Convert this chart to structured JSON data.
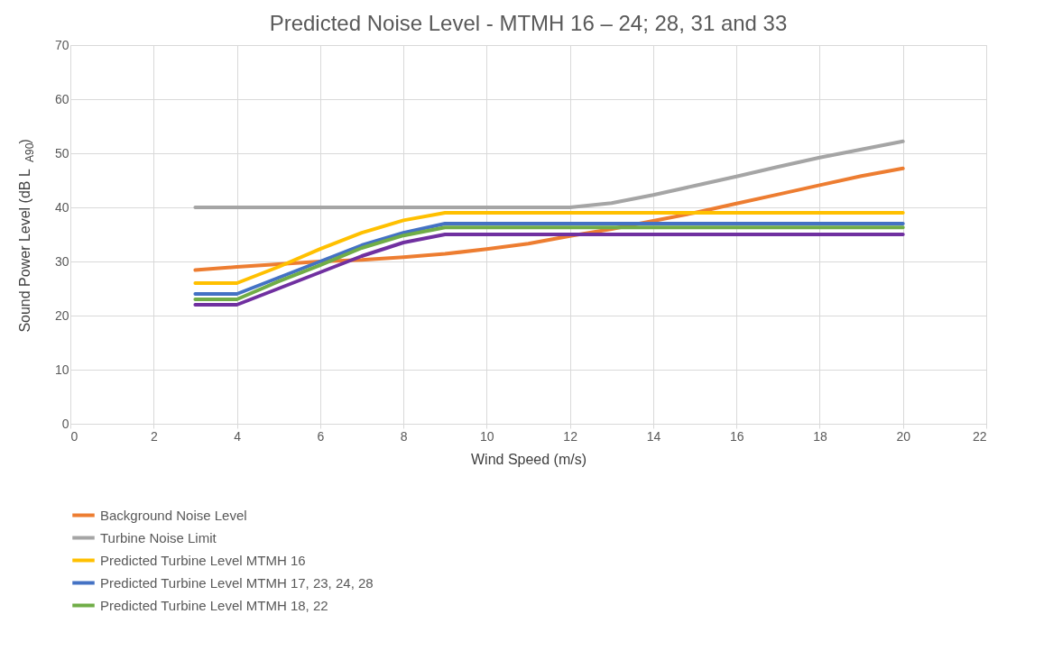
{
  "chart_data": {
    "type": "line",
    "title": "Predicted Noise Level - MTMH 16 – 24; 28, 31 and 33",
    "xlabel": "Wind Speed (m/s)",
    "ylabel": "Sound Power Level (dB L$_{A90}$)",
    "x": [
      3,
      4,
      5,
      6,
      7,
      8,
      9,
      10,
      11,
      12,
      13,
      14,
      15,
      16,
      17,
      18,
      19,
      20
    ],
    "series": [
      {
        "name": "Background Noise Level",
        "color": "#ed7d31",
        "values": [
          28.4,
          29,
          29.5,
          30,
          30.3,
          30.8,
          31.4,
          32.3,
          33.3,
          34.7,
          36,
          37.5,
          39,
          40.7,
          42.4,
          44.1,
          45.8,
          47.2
        ]
      },
      {
        "name": "Turbine Noise Limit",
        "color": "#a5a5a5",
        "values": [
          40,
          40,
          40,
          40,
          40,
          40,
          40,
          40,
          40,
          40,
          40.8,
          42.3,
          44,
          45.7,
          47.5,
          49.2,
          50.7,
          52.2
        ]
      },
      {
        "name": "Predicted Turbine Level MTMH 16",
        "color": "#ffc000",
        "values": [
          26,
          26,
          29,
          32.3,
          35.3,
          37.6,
          39,
          39,
          39,
          39,
          39,
          39,
          39,
          39,
          39,
          39,
          39,
          39
        ]
      },
      {
        "name": "Predicted Turbine Level MTMH 17, 23, 24, 28",
        "color": "#4472c4",
        "values": [
          24,
          24,
          27,
          30,
          33,
          35.3,
          37,
          37,
          37,
          37,
          37,
          37,
          37,
          37,
          37,
          37,
          37,
          37
        ]
      },
      {
        "name": "Predicted Turbine Level MTMH 18, 22",
        "color": "#70ad47",
        "values": [
          23,
          23,
          26.3,
          29.3,
          32.5,
          34.8,
          36.3,
          36.3,
          36.3,
          36.3,
          36.3,
          36.3,
          36.3,
          36.3,
          36.3,
          36.3,
          36.3,
          36.3
        ]
      },
      {
        "color": "#7030a0",
        "values": [
          22,
          22,
          25,
          28,
          31,
          33.5,
          35,
          35,
          35,
          35,
          35,
          35,
          35,
          35,
          35,
          35,
          35,
          35
        ]
      }
    ],
    "xlim": [
      0,
      22
    ],
    "xticks": [
      0,
      2,
      4,
      6,
      8,
      10,
      12,
      14,
      16,
      18,
      20,
      22
    ],
    "ylim": [
      0,
      70
    ],
    "yticks": [
      0,
      10,
      20,
      30,
      40,
      50,
      60,
      70
    ],
    "grid": true,
    "legend": "bottom",
    "marker": "none",
    "line_style": "solid"
  }
}
